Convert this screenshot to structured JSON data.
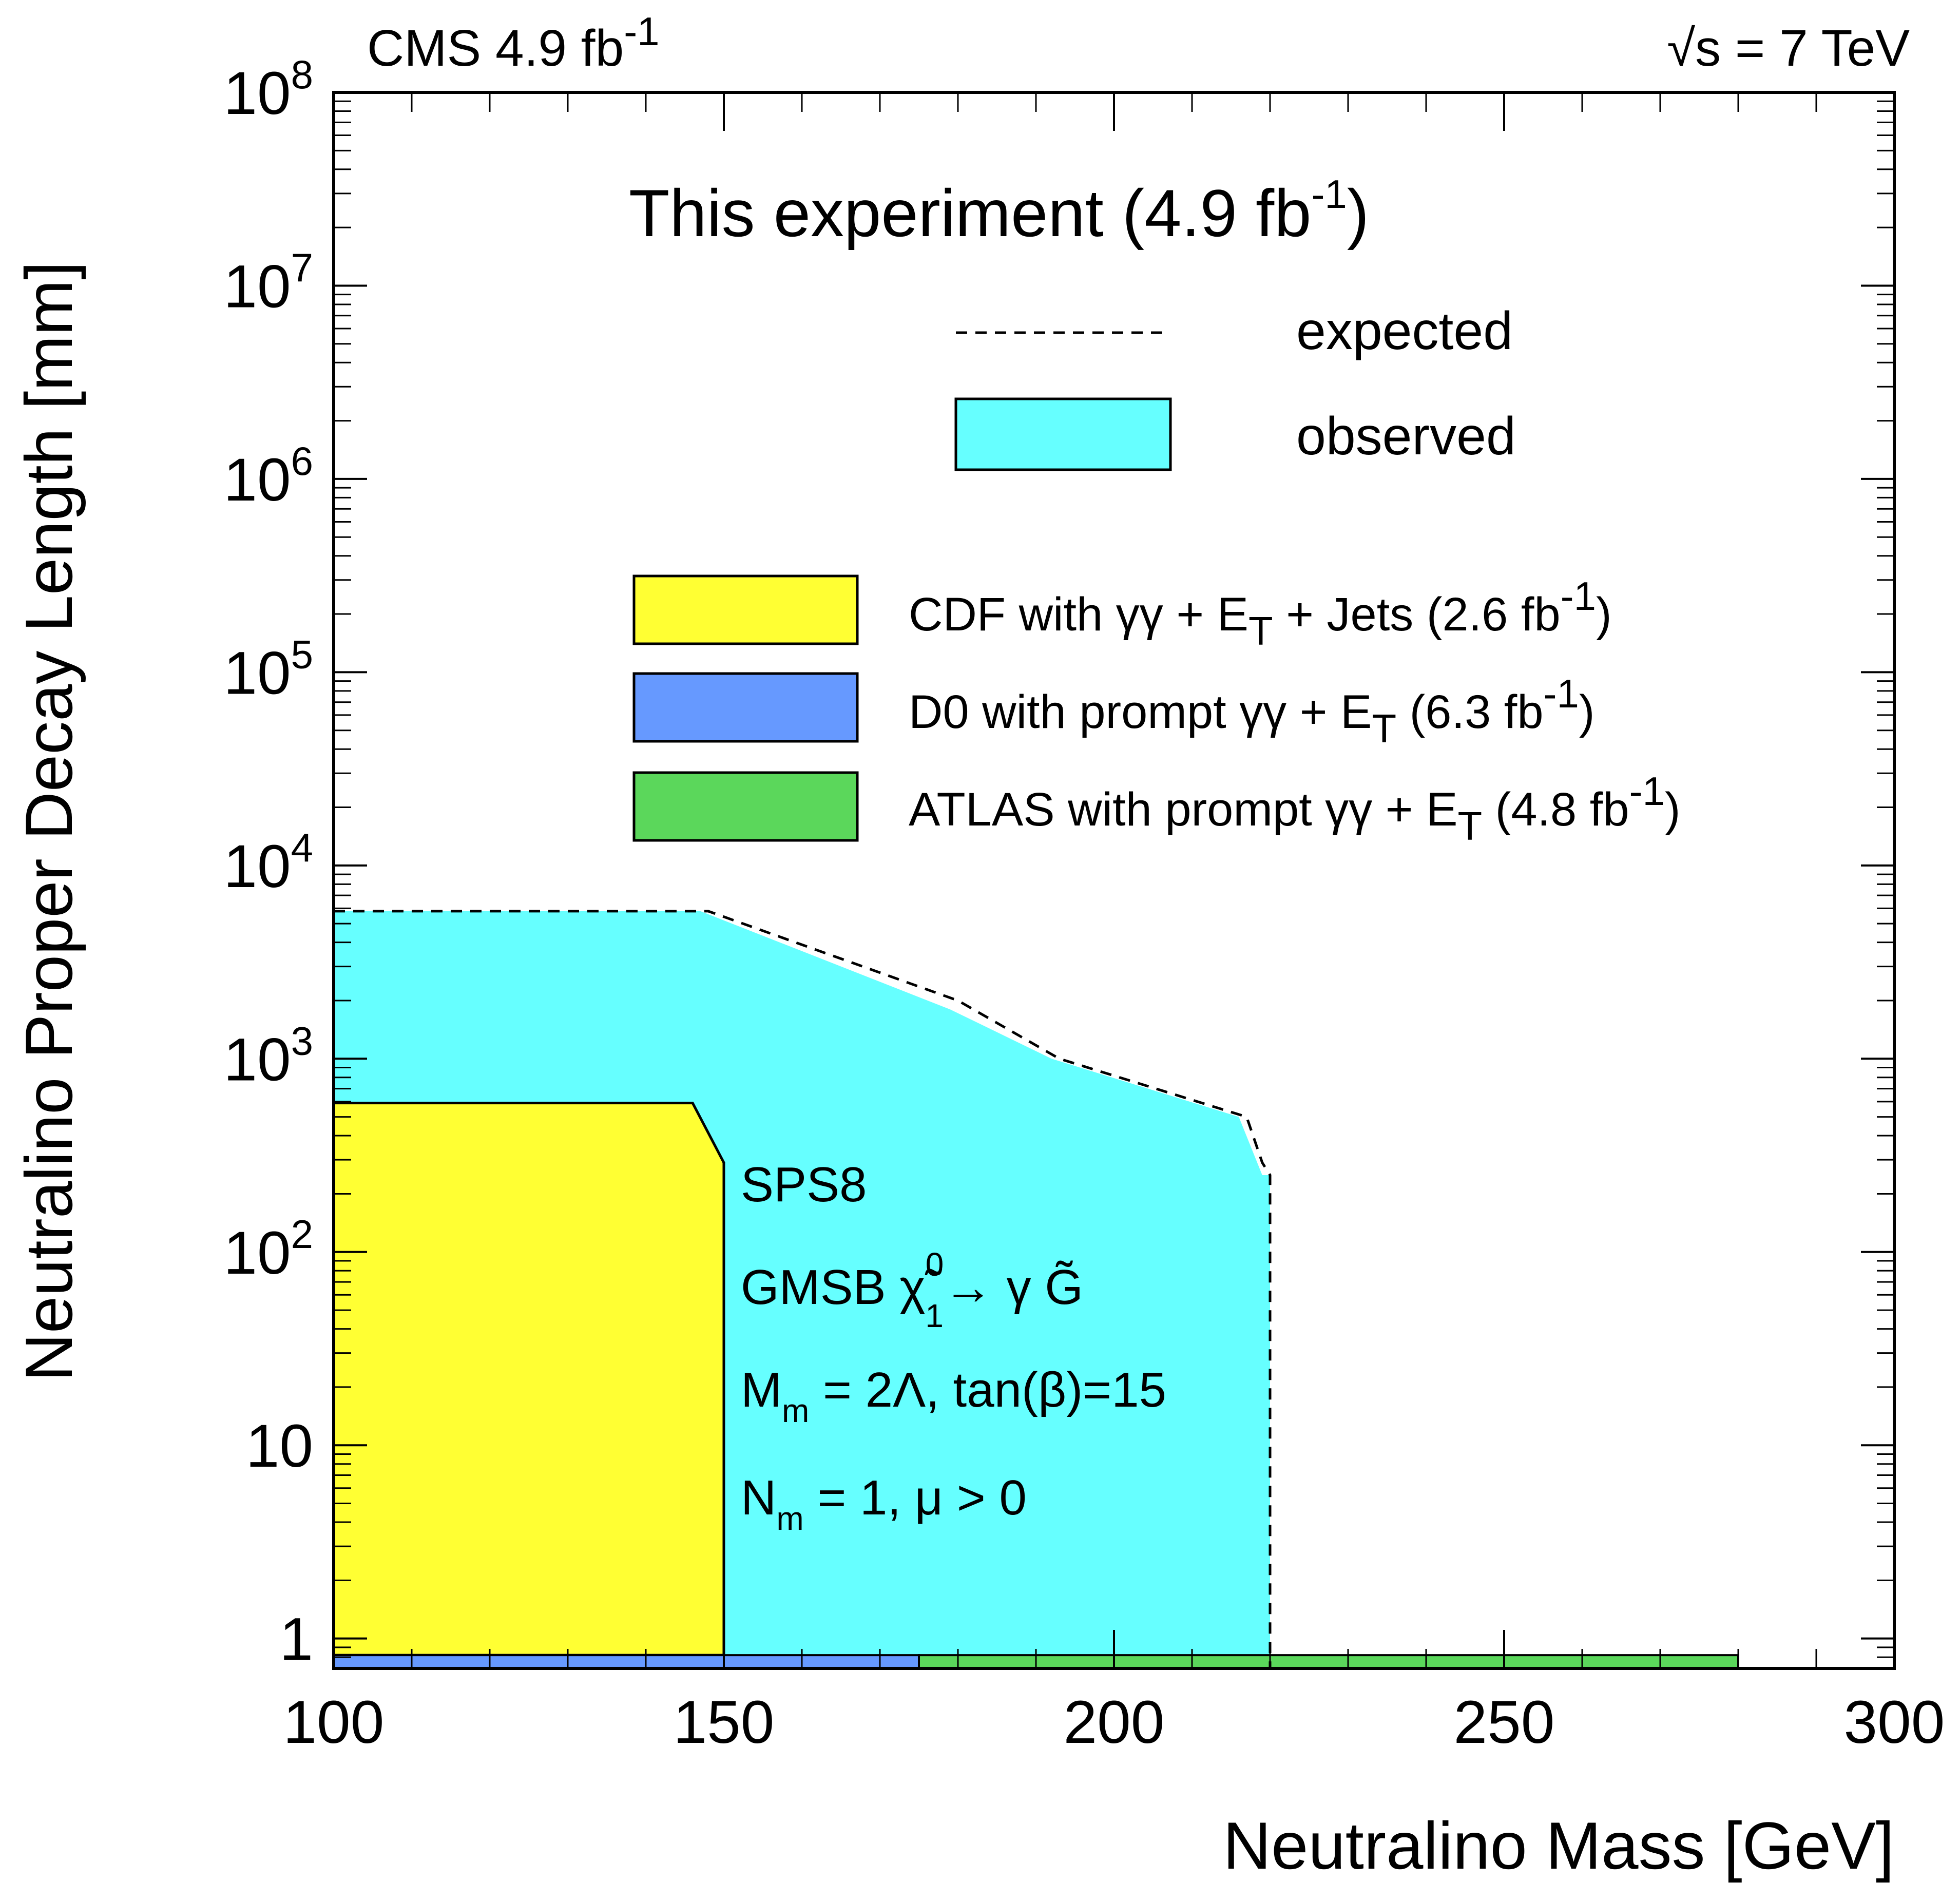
{
  "header": {
    "left_prefix": "CMS 4.9 fb",
    "left_sup": "-1",
    "right_radical": "√",
    "right_text": "s = 7 TeV"
  },
  "chart_data": {
    "type": "area",
    "xlabel": "Neutralino Mass [GeV]",
    "ylabel": "Neutralino Proper Decay Length [mm]",
    "xlim": [
      100,
      300
    ],
    "ylim": [
      0.7,
      100000000
    ],
    "y_scale": "log",
    "x_ticks": [
      {
        "value": 100,
        "label": "100"
      },
      {
        "value": 150,
        "label": "150"
      },
      {
        "value": 200,
        "label": "200"
      },
      {
        "value": 250,
        "label": "250"
      },
      {
        "value": 300,
        "label": "300"
      }
    ],
    "y_ticks": [
      {
        "value": 1,
        "base": "1",
        "exp": ""
      },
      {
        "value": 10,
        "base": "10",
        "exp": ""
      },
      {
        "value": 100,
        "base": "10",
        "exp": "2"
      },
      {
        "value": 1000,
        "base": "10",
        "exp": "3"
      },
      {
        "value": 10000,
        "base": "10",
        "exp": "4"
      },
      {
        "value": 100000,
        "base": "10",
        "exp": "5"
      },
      {
        "value": 1000000,
        "base": "10",
        "exp": "6"
      },
      {
        "value": 10000000,
        "base": "10",
        "exp": "7"
      },
      {
        "value": 100000000,
        "base": "10",
        "exp": "8"
      }
    ],
    "legend_header": {
      "prefix": "This experiment (4.9 fb",
      "sup": "-1",
      "suffix": ")"
    },
    "series": [
      {
        "name": "expected",
        "kind": "line",
        "style": "dashed",
        "color": "#000000",
        "points": [
          [
            100,
            5800
          ],
          [
            148,
            5800
          ],
          [
            180,
            2000
          ],
          [
            193,
            1000
          ],
          [
            217,
            500
          ],
          [
            219,
            290
          ],
          [
            220,
            250
          ],
          [
            220,
            0.7
          ]
        ]
      },
      {
        "name": "observed",
        "kind": "area",
        "color": "#66ffff",
        "points": [
          [
            100,
            5800
          ],
          [
            147,
            5800
          ],
          [
            179,
            1800
          ],
          [
            192,
            1000
          ],
          [
            216,
            500
          ],
          [
            219,
            250
          ],
          [
            220,
            250
          ],
          [
            220,
            0.7
          ],
          [
            100,
            0.7
          ]
        ]
      },
      {
        "name": "CDF with γγ + E̸T + Jets (2.6 fb-1)",
        "legend_text": "CDF with γγ + ",
        "legend_tail": " + Jets (2.6 fb",
        "kind": "area",
        "color": "#ffff33",
        "points": [
          [
            100,
            590
          ],
          [
            146,
            590
          ],
          [
            150,
            290
          ],
          [
            150,
            0.82
          ],
          [
            100,
            0.82
          ]
        ]
      },
      {
        "name": "D0 with prompt γγ + E̸T (6.3 fb-1)",
        "legend_text": "D0 with prompt γγ + ",
        "legend_tail": " (6.3 fb",
        "kind": "band",
        "color": "#6699ff",
        "x_range": [
          100,
          175
        ],
        "y_range": [
          0.7,
          0.82
        ]
      },
      {
        "name": "ATLAS with prompt γγ + E̸T (4.8 fb-1)",
        "legend_text": "ATLAS with prompt γγ + ",
        "legend_tail": " (4.8 fb",
        "kind": "band",
        "color": "#5bd75b",
        "x_range": [
          175,
          280
        ],
        "y_range": [
          0.7,
          0.82
        ]
      }
    ],
    "legend_met": "E",
    "legend_met_sub": "T",
    "legend_sup": "-1",
    "legend_close": ")",
    "annotations": {
      "line1": "SPS8",
      "line2_prefix": "GMSB ",
      "line2_chi": "χ̃",
      "line2_chi_sup": "0",
      "line2_chi_sub": "1",
      "line2_arrow": "→ γ ",
      "line2_gravitino": "G̃",
      "line3_M": "M",
      "line3_sub": "m",
      "line3_rest": " = 2Λ, tan(β)=15",
      "line4_N": "N",
      "line4_sub": "m",
      "line4_rest": " = 1, μ > 0"
    }
  }
}
